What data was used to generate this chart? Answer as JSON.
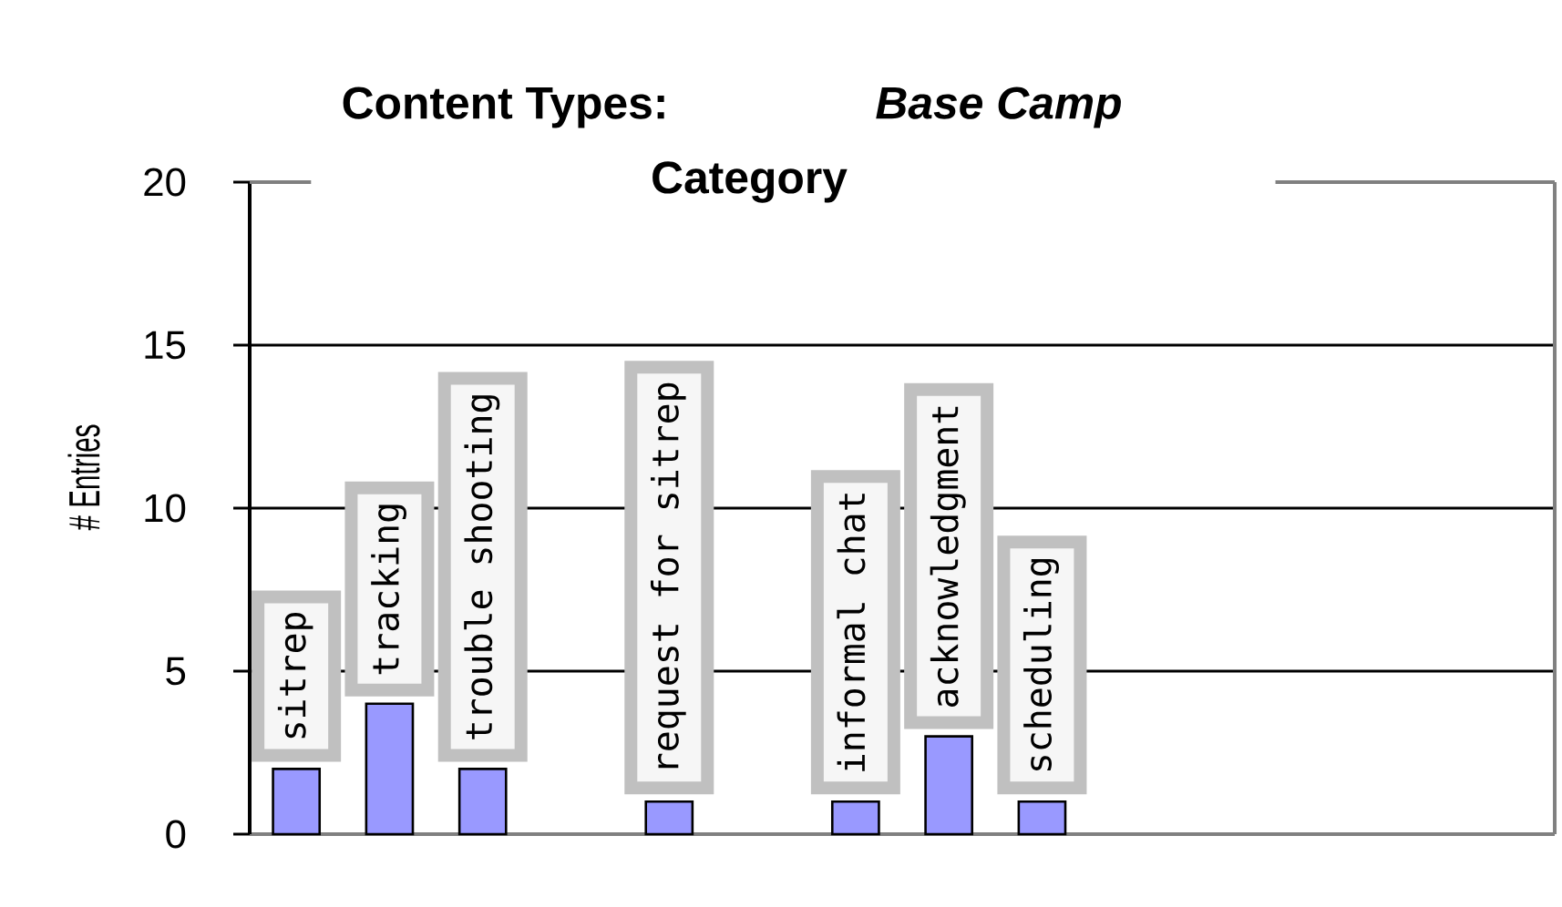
{
  "chart_data": {
    "type": "bar",
    "title": "Content Types:",
    "subtitle": "Base Camp",
    "xlabel": "Category",
    "ylabel": "# Entries",
    "categories": [
      "sitrep",
      "tracking",
      "trouble shooting",
      null,
      "request for sitrep",
      null,
      "informal chat",
      "acknowledgment",
      "scheduling",
      null,
      null,
      null,
      null,
      null
    ],
    "values": [
      2,
      4,
      2,
      null,
      1,
      null,
      1,
      3,
      1,
      null,
      null,
      null,
      null,
      null
    ],
    "color": "#9999ff",
    "ylim": [
      0,
      20
    ],
    "yticks": [
      0,
      5,
      10,
      15,
      20
    ],
    "grid": "y"
  }
}
